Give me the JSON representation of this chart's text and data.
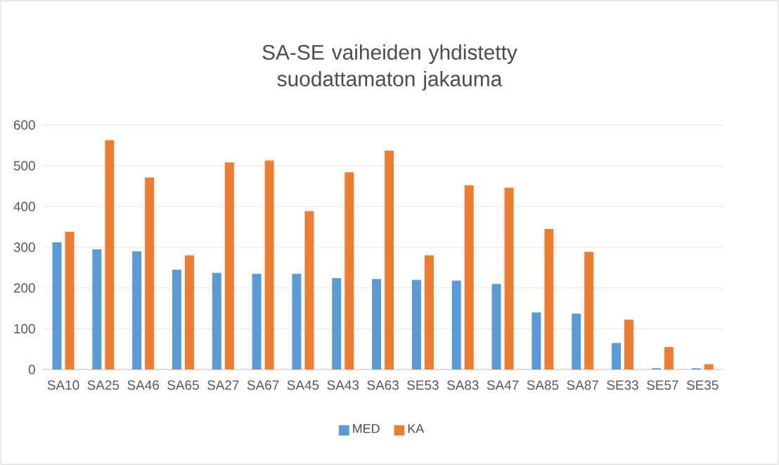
{
  "chart_data": {
    "type": "bar",
    "title": "SA-SE vaiheiden yhdistetty suodattamaton jakauma",
    "categories": [
      "SA10",
      "SA25",
      "SA46",
      "SA65",
      "SA27",
      "SA67",
      "SA45",
      "SA43",
      "SA63",
      "SE53",
      "SA83",
      "SA47",
      "SA85",
      "SA87",
      "SE33",
      "SE57",
      "SE35"
    ],
    "series": [
      {
        "name": "MED",
        "color": "#5b9bd5",
        "values": [
          312,
          295,
          290,
          245,
          237,
          235,
          235,
          224,
          222,
          220,
          218,
          210,
          140,
          137,
          65,
          3,
          3
        ]
      },
      {
        "name": "KA",
        "color": "#ed7d31",
        "values": [
          338,
          563,
          471,
          280,
          508,
          513,
          389,
          484,
          537,
          280,
          452,
          446,
          345,
          289,
          122,
          55,
          13
        ]
      }
    ],
    "ylim": [
      0,
      600
    ],
    "yticks": [
      0,
      100,
      200,
      300,
      400,
      500,
      600
    ],
    "grid": "y",
    "legend": "bottom"
  }
}
